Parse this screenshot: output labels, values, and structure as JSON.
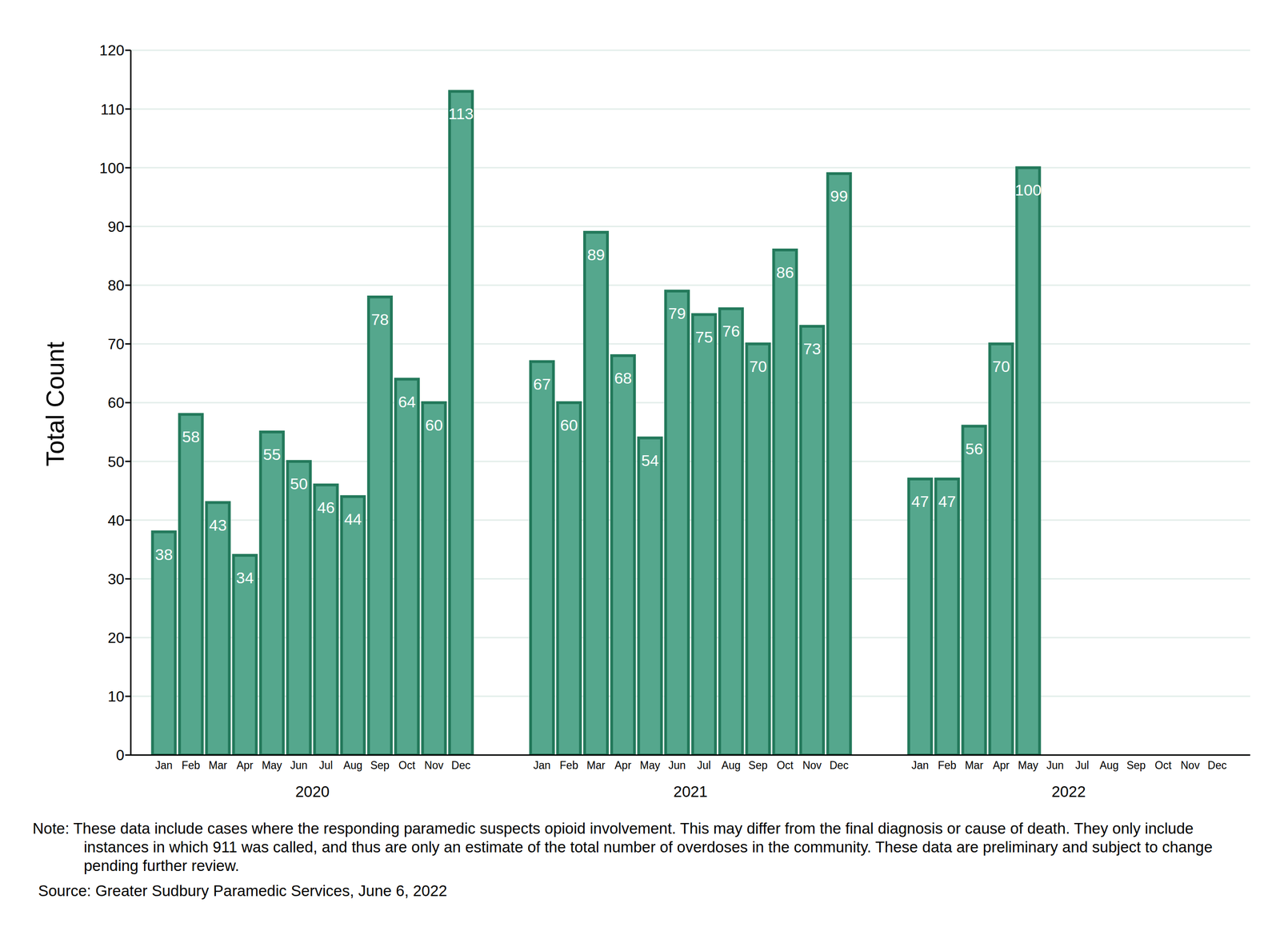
{
  "chart_data": {
    "type": "bar",
    "y_label": "Total Count",
    "categories": [
      "Jan",
      "Feb",
      "Mar",
      "Apr",
      "May",
      "Jun",
      "Jul",
      "Aug",
      "Sep",
      "Oct",
      "Nov",
      "Dec",
      null,
      null,
      "Jan",
      "Feb",
      "Mar",
      "Apr",
      "May",
      "Jun",
      "Jul",
      "Aug",
      "Sep",
      "Oct",
      "Nov",
      "Dec",
      null,
      null,
      "Jan",
      "Feb",
      "Mar",
      "Apr",
      "May",
      "Jun",
      "Jul",
      "Aug",
      "Sep",
      "Oct",
      "Nov",
      "Dec"
    ],
    "values": [
      38,
      58,
      43,
      34,
      55,
      50,
      46,
      44,
      78,
      64,
      60,
      113,
      null,
      null,
      67,
      60,
      89,
      68,
      54,
      79,
      75,
      76,
      70,
      86,
      73,
      99,
      null,
      null,
      47,
      47,
      56,
      70,
      100,
      null,
      null,
      null,
      null,
      null,
      null,
      null
    ],
    "x_groups": [
      "2020",
      "2021",
      "2022"
    ],
    "ylim": [
      0,
      120
    ],
    "yticks": [
      0,
      10,
      20,
      30,
      40,
      50,
      60,
      70,
      80,
      90,
      100,
      110,
      120
    ],
    "grid": true,
    "data_labels": true,
    "color": "#55a78d",
    "note": "Note: These data include cases where the responding paramedic suspects opioid involvement. This may differ from the final diagnosis or cause of death. They only include instances in which 911 was called, and thus are only an estimate of the total number of overdoses in the community. These data are preliminary and subject to change pending further review.",
    "source": "Source: Greater Sudbury Paramedic Services, June 6, 2022"
  }
}
